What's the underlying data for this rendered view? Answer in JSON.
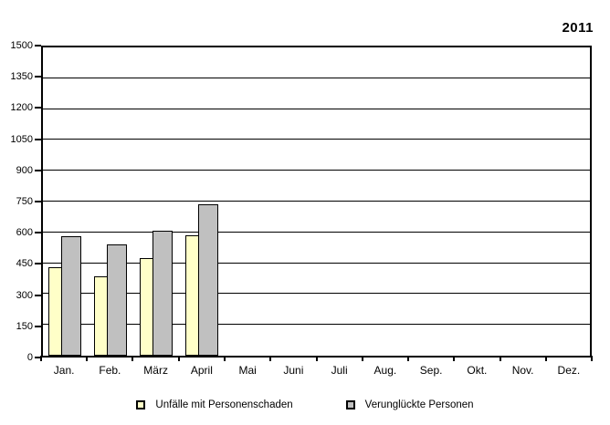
{
  "title": "2011",
  "chart_data": {
    "type": "bar",
    "title": "2011",
    "categories": [
      "Jan.",
      "Feb.",
      "März",
      "April",
      "Mai",
      "Juni",
      "Juli",
      "Aug.",
      "Sep.",
      "Okt.",
      "Nov.",
      "Dez."
    ],
    "series": [
      {
        "name": "Unfälle mit Personenschaden",
        "color": "#FFFFC8",
        "values": [
          430,
          385,
          475,
          585,
          null,
          null,
          null,
          null,
          null,
          null,
          null,
          null
        ]
      },
      {
        "name": "Verunglückte Personen",
        "color": "#C0C0C0",
        "values": [
          580,
          540,
          610,
          735,
          null,
          null,
          null,
          null,
          null,
          null,
          null,
          null
        ]
      }
    ],
    "xlabel": "",
    "ylabel": "",
    "ylim": [
      0,
      1500
    ],
    "yticks": [
      0,
      150,
      300,
      450,
      600,
      750,
      900,
      1050,
      1200,
      1350,
      1500
    ],
    "grid": true,
    "grid_color": "#000000",
    "legend_position": "bottom"
  }
}
